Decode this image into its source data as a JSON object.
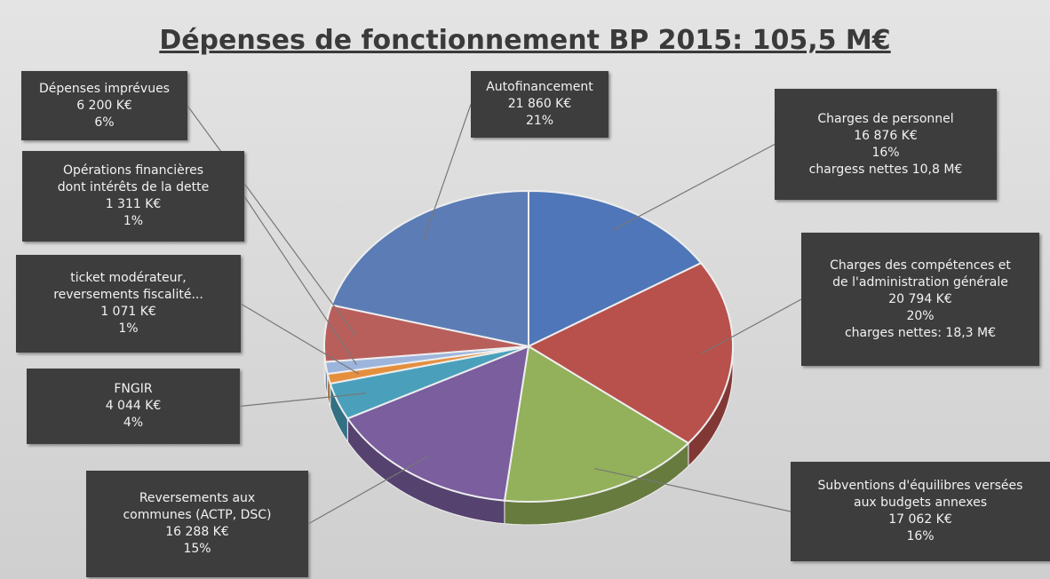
{
  "chart_data": {
    "type": "pie",
    "title": "Dépenses de fonctionnement BP 2015: 105,5 M€",
    "categories": [
      [
        "Charges de personnel"
      ],
      [
        "Charges des compétences et",
        "de l'administration générale"
      ],
      [
        "Subventions d'équilibres versées",
        "aux budgets annexes"
      ],
      [
        "Reversements aux",
        "communes (ACTP, DSC)"
      ],
      [
        "FNGIR"
      ],
      [
        "ticket modérateur,",
        "reversements fiscalité..."
      ],
      [
        "Opérations financières",
        "dont intérêts de la dette"
      ],
      [
        "Dépenses imprévues"
      ],
      [
        "Autofinancement"
      ]
    ],
    "values": [
      16876,
      20794,
      17062,
      16288,
      4044,
      1071,
      1311,
      6200,
      21860
    ],
    "value_labels": [
      "16 876 K€",
      "20 794 K€",
      "17 062 K€",
      "16 288 K€",
      "4 044 K€",
      "1 071 K€",
      "1 311 K€",
      "6 200 K€",
      "21 860 K€"
    ],
    "percent_labels": [
      "16%",
      "20%",
      "16%",
      "15%",
      "4%",
      "1%",
      "1%",
      "6%",
      "21%"
    ],
    "notes": [
      "chargess nettes 10,8 M€",
      "charges nettes: 18,3 M€",
      null,
      null,
      null,
      null,
      null,
      null,
      null
    ],
    "colors": [
      "#4f76b8",
      "#b8504c",
      "#93b05a",
      "#7a5e9e",
      "#4aa0bb",
      "#e58f3e",
      "#9db5dc",
      "#b85f5c",
      "#5c7cb5"
    ]
  }
}
